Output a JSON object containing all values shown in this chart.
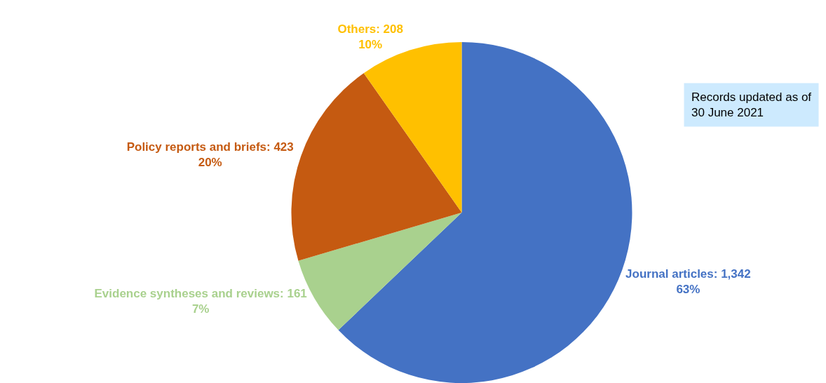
{
  "chart_data": {
    "type": "pie",
    "categories": [
      "Journal articles",
      "Evidence syntheses and reviews",
      "Policy reports and briefs",
      "Others"
    ],
    "values": [
      1342,
      161,
      423,
      208
    ],
    "colors": [
      "#4472c4",
      "#a9d18e",
      "#c55a11",
      "#ffc000"
    ],
    "value_labels": [
      "1,342\n63%",
      "161\n7%",
      "423\n20%",
      "208\n10%"
    ],
    "annotations": [
      "Records updated as of\n30 June 2021"
    ]
  }
}
